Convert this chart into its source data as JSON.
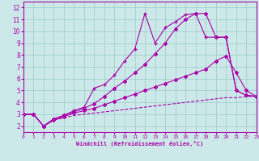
{
  "xlabel": "Windchill (Refroidissement éolien,°C)",
  "xlim": [
    0,
    23
  ],
  "ylim": [
    1.5,
    12.5
  ],
  "xticks": [
    0,
    1,
    2,
    3,
    4,
    5,
    6,
    7,
    8,
    9,
    10,
    11,
    12,
    13,
    14,
    15,
    16,
    17,
    18,
    19,
    20,
    21,
    22,
    23
  ],
  "yticks": [
    2,
    3,
    4,
    5,
    6,
    7,
    8,
    9,
    10,
    11,
    12
  ],
  "background_color": "#cce8e8",
  "line_color": "#aa00aa",
  "grid_color": "#99cccc",
  "series": [
    {
      "x": [
        0,
        1,
        2,
        3,
        4,
        5,
        6,
        7,
        8,
        9,
        10,
        11,
        12,
        13,
        14,
        15,
        16,
        17,
        18,
        19,
        20,
        21,
        22,
        23
      ],
      "y": [
        3,
        3,
        2,
        2.5,
        2.7,
        2.9,
        3.0,
        3.1,
        3.2,
        3.3,
        3.4,
        3.5,
        3.6,
        3.7,
        3.8,
        3.9,
        4.0,
        4.1,
        4.2,
        4.3,
        4.4,
        4.4,
        4.5,
        4.5
      ],
      "marker": "None",
      "markersize": 0,
      "linestyle": "--",
      "linewidth": 0.8
    },
    {
      "x": [
        0,
        1,
        2,
        3,
        4,
        5,
        6,
        7,
        8,
        9,
        10,
        11,
        12,
        13,
        14,
        15,
        16,
        17,
        18,
        19,
        20,
        21,
        22,
        23
      ],
      "y": [
        3,
        3,
        2,
        2.5,
        2.8,
        3.1,
        3.3,
        3.5,
        3.8,
        4.1,
        4.4,
        4.7,
        5.0,
        5.3,
        5.6,
        5.9,
        6.2,
        6.5,
        6.8,
        7.5,
        7.9,
        6.5,
        5.0,
        4.5
      ],
      "marker": "D",
      "markersize": 2,
      "linestyle": "-",
      "linewidth": 0.8
    },
    {
      "x": [
        0,
        1,
        2,
        3,
        4,
        5,
        6,
        7,
        8,
        9,
        10,
        11,
        12,
        13,
        14,
        15,
        16,
        17,
        18,
        19,
        20,
        21,
        22,
        23
      ],
      "y": [
        3,
        3,
        2,
        2.6,
        2.9,
        3.2,
        3.5,
        3.9,
        4.5,
        5.2,
        5.8,
        6.5,
        7.2,
        8.1,
        9.0,
        10.2,
        11.0,
        11.5,
        11.5,
        9.5,
        9.5,
        5.0,
        4.6,
        4.5
      ],
      "marker": "D",
      "markersize": 2,
      "linestyle": "-",
      "linewidth": 0.8
    },
    {
      "x": [
        0,
        1,
        2,
        3,
        4,
        5,
        6,
        7,
        8,
        9,
        10,
        11,
        12,
        13,
        14,
        15,
        16,
        17,
        18,
        19,
        20,
        21,
        22,
        23
      ],
      "y": [
        3,
        3,
        2,
        2.6,
        2.9,
        3.3,
        3.6,
        5.2,
        5.5,
        6.3,
        7.5,
        8.5,
        11.5,
        9.0,
        10.3,
        10.8,
        11.4,
        11.5,
        9.5,
        9.5,
        9.5,
        5.0,
        4.6,
        4.5
      ],
      "marker": "+",
      "markersize": 3.5,
      "linestyle": "-",
      "linewidth": 0.8
    }
  ]
}
